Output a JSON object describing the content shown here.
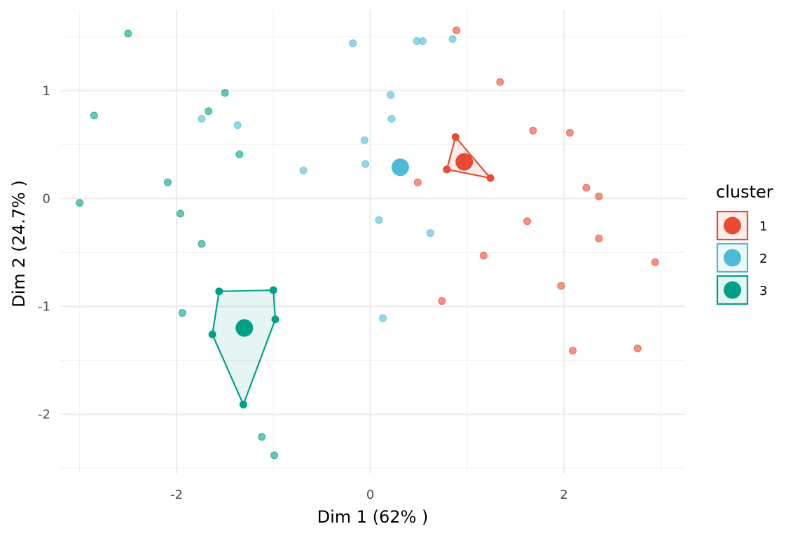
{
  "chart_data": {
    "type": "scatter",
    "xlabel": "Dim 1 (62% )",
    "ylabel": "Dim 2 (24.7% )",
    "xlim": [
      -3.2,
      3.25
    ],
    "ylim": [
      -2.55,
      1.75
    ],
    "x_ticks": [
      -2,
      0,
      2
    ],
    "y_ticks": [
      1,
      0,
      -1,
      -2
    ],
    "x_tick_labels": [
      "-2",
      "0",
      "2"
    ],
    "y_tick_labels": [
      "1",
      "0",
      "-1",
      "-2"
    ],
    "grid": true,
    "legend": {
      "title": "cluster",
      "position": "right",
      "entries": [
        "1",
        "2",
        "3"
      ]
    },
    "series": [
      {
        "name": "1",
        "color": "#E84A33",
        "points": [
          [
            0.89,
            1.56
          ],
          [
            1.34,
            1.08
          ],
          [
            1.68,
            0.63
          ],
          [
            2.06,
            0.61
          ],
          [
            0.88,
            0.57
          ],
          [
            0.79,
            0.27
          ],
          [
            1.24,
            0.19
          ],
          [
            0.49,
            0.15
          ],
          [
            2.23,
            0.1
          ],
          [
            2.36,
            0.02
          ],
          [
            1.62,
            -0.21
          ],
          [
            2.36,
            -0.37
          ],
          [
            1.17,
            -0.53
          ],
          [
            2.94,
            -0.59
          ],
          [
            1.97,
            -0.81
          ],
          [
            0.74,
            -0.95
          ],
          [
            2.76,
            -1.39
          ],
          [
            2.09,
            -1.41
          ]
        ],
        "hull": [
          [
            0.88,
            0.57
          ],
          [
            1.24,
            0.19
          ],
          [
            0.79,
            0.27
          ]
        ],
        "centroid": [
          0.97,
          0.34
        ]
      },
      {
        "name": "2",
        "color": "#4EBAD6",
        "points": [
          [
            -0.18,
            1.44
          ],
          [
            0.48,
            1.46
          ],
          [
            0.54,
            1.46
          ],
          [
            0.85,
            1.48
          ],
          [
            0.21,
            0.96
          ],
          [
            0.22,
            0.74
          ],
          [
            -1.74,
            0.74
          ],
          [
            -1.37,
            0.68
          ],
          [
            -0.06,
            0.54
          ],
          [
            -0.05,
            0.32
          ],
          [
            -0.69,
            0.26
          ],
          [
            0.09,
            -0.2
          ],
          [
            0.62,
            -0.32
          ],
          [
            0.13,
            -1.11
          ]
        ],
        "hull": [],
        "centroid": [
          0.31,
          0.29
        ]
      },
      {
        "name": "3",
        "color": "#00A087",
        "points": [
          [
            -2.5,
            1.53
          ],
          [
            -1.5,
            0.98
          ],
          [
            -2.85,
            0.77
          ],
          [
            -1.67,
            0.81
          ],
          [
            -1.35,
            0.41
          ],
          [
            -2.09,
            0.15
          ],
          [
            -3.0,
            -0.04
          ],
          [
            -1.96,
            -0.14
          ],
          [
            -1.74,
            -0.42
          ],
          [
            -1.56,
            -0.86
          ],
          [
            -1.0,
            -0.85
          ],
          [
            -1.94,
            -1.06
          ],
          [
            -0.98,
            -1.12
          ],
          [
            -1.63,
            -1.26
          ],
          [
            -1.31,
            -1.91
          ],
          [
            -1.12,
            -2.21
          ],
          [
            -0.99,
            -2.38
          ]
        ],
        "hull": [
          [
            -1.56,
            -0.86
          ],
          [
            -1.0,
            -0.85
          ],
          [
            -0.98,
            -1.12
          ],
          [
            -1.31,
            -1.91
          ],
          [
            -1.63,
            -1.26
          ]
        ],
        "centroid": [
          -1.3,
          -1.2
        ]
      }
    ]
  }
}
